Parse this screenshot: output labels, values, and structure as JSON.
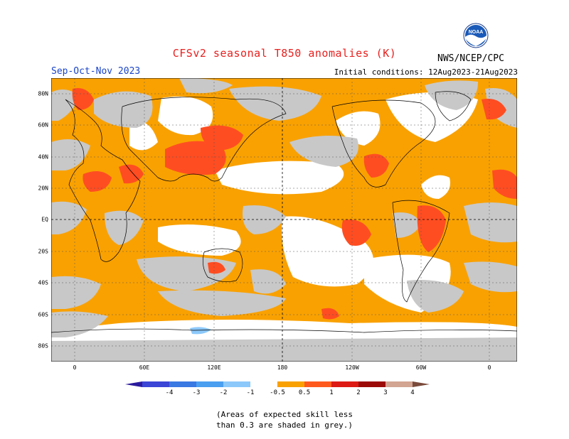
{
  "title": "CFSv2 seasonal T850 anomalies (K)",
  "season": "Sep-Oct-Nov 2023",
  "initial_conditions": "Initial conditions: 12Aug2023-21Aug2023",
  "organization": "NWS/NCEP/CPC",
  "logo_text": "NOAA",
  "lat_labels": [
    "80N",
    "60N",
    "40N",
    "20N",
    "EQ",
    "20S",
    "40S",
    "60S",
    "80S"
  ],
  "lon_labels": [
    "0",
    "60E",
    "120E",
    "180",
    "120W",
    "60W",
    "0"
  ],
  "colorbar": {
    "ticks": [
      "-4",
      "-3",
      "-2",
      "-1",
      "-0.5",
      "0.5",
      "1",
      "2",
      "3",
      "4"
    ],
    "colors": [
      "#2a1a9e",
      "#3b45d6",
      "#3a78e2",
      "#4a9ff0",
      "#8cc8fa",
      "#ffffff",
      "#f9a100",
      "#ff5a1e",
      "#dd1a14",
      "#9c0a08",
      "#d2a492",
      "#7a4a3a"
    ]
  },
  "skill_note_line1": "(Areas of expected skill less",
  "skill_note_line2": "than 0.3 are shaded in grey.)",
  "colors": {
    "anomaly_05_1": "#f9a100",
    "anomaly_1_2": "#ff4d22",
    "low_skill": "#c8c8c8",
    "neutral": "#ffffff"
  }
}
